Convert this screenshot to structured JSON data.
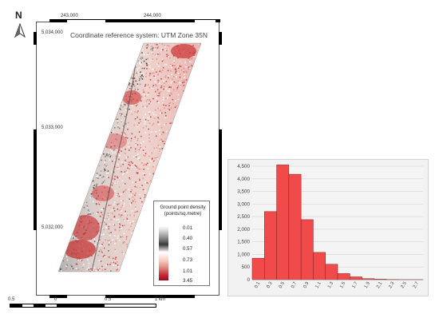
{
  "map": {
    "north_label": "N",
    "crs_label": "Coordinate reference system: UTM Zone 35N",
    "easting_labels": [
      "243,000",
      "244,000"
    ],
    "northing_labels": [
      "5,034,000",
      "5,033,000",
      "5,032,000"
    ]
  },
  "legend": {
    "title": "Ground point density (points/sq.metre)",
    "labels": [
      "0.01",
      "0.40",
      "0.57",
      "0.73",
      "1.01",
      "3.45"
    ]
  },
  "scale_bar": {
    "labels": [
      "0.5",
      "0",
      "0.5",
      "1 km"
    ]
  },
  "chart_data": {
    "type": "bar",
    "title": "",
    "xlabel": "",
    "ylabel": "",
    "x_tick_labels": [
      "0.1",
      "0.3",
      "0.5",
      "0.7",
      "0.9",
      "1.1",
      "1.3",
      "1.5",
      "1.7",
      "1.9",
      "2.1",
      "2.3",
      "2.5",
      "2.7"
    ],
    "y_tick_labels": [
      "0",
      "500",
      "1,000",
      "1,500",
      "2,000",
      "2,500",
      "3,000",
      "3,500",
      "4,000",
      "4,500"
    ],
    "ylim": [
      0,
      4500
    ],
    "bin_width": 0.2,
    "bin_starts": [
      0.0,
      0.2,
      0.4,
      0.6,
      0.8,
      1.0,
      1.2,
      1.4,
      1.6,
      1.8,
      2.0,
      2.2,
      2.4,
      2.6
    ],
    "values": [
      850,
      2700,
      4550,
      4180,
      2380,
      1080,
      610,
      240,
      110,
      40,
      20,
      10,
      5,
      5
    ],
    "bar_color": "#f04a4a",
    "grid": true
  }
}
